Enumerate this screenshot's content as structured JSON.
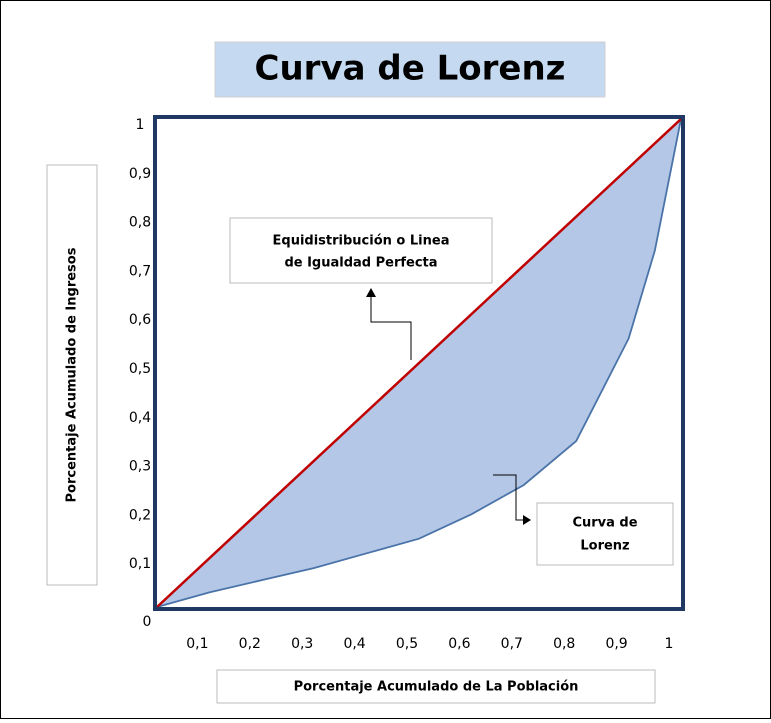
{
  "chart_data": {
    "type": "line",
    "title": "Curva de Lorenz",
    "x_label": "Porcentaje Acumulado de La Población",
    "y_label": "Porcentaje Acumulado de Ingresos",
    "origin_label": "0",
    "series": [
      {
        "color": "#c00000",
        "x": [
          0,
          1
        ],
        "values": [
          0,
          1
        ]
      },
      {
        "color": "#4a73a8",
        "x": [
          0,
          0.1,
          0.2,
          0.3,
          0.4,
          0.5,
          0.6,
          0.7,
          0.8,
          0.9,
          0.95,
          1
        ],
        "values": [
          0,
          0.03,
          0.055,
          0.08,
          0.11,
          0.14,
          0.19,
          0.25,
          0.34,
          0.55,
          0.73,
          1
        ]
      }
    ],
    "area_color": "#b4c7e7",
    "annotations": [
      {
        "lines": [
          "Equidistribución o Linea",
          "de Igualdad Perfecta"
        ]
      },
      {
        "lines": [
          "Curva de",
          "Lorenz"
        ]
      }
    ],
    "xlim": [
      0,
      1
    ],
    "ylim": [
      0,
      1
    ],
    "xticks": [
      {
        "value": 0.1,
        "label": "0,1"
      },
      {
        "value": 0.2,
        "label": "0,2"
      },
      {
        "value": 0.3,
        "label": "0,3"
      },
      {
        "value": 0.4,
        "label": "0,4"
      },
      {
        "value": 0.5,
        "label": "0,5"
      },
      {
        "value": 0.6,
        "label": "0,6"
      },
      {
        "value": 0.7,
        "label": "0,7"
      },
      {
        "value": 0.8,
        "label": "0,8"
      },
      {
        "value": 0.9,
        "label": "0,9"
      },
      1
    ],
    "yticks": [
      {
        "value": 0.1,
        "label": "0,1"
      },
      {
        "value": 0.2,
        "label": "0,2"
      },
      {
        "value": 0.3,
        "label": "0,3"
      },
      {
        "value": 0.4,
        "label": "0,4"
      },
      {
        "value": 0.5,
        "label": "0,5"
      },
      {
        "value": 0.6,
        "label": "0,6"
      },
      {
        "value": 0.7,
        "label": "0,7"
      },
      {
        "value": 0.8,
        "label": "0,8"
      },
      {
        "value": 0.9,
        "label": "0,9"
      },
      1
    ]
  }
}
